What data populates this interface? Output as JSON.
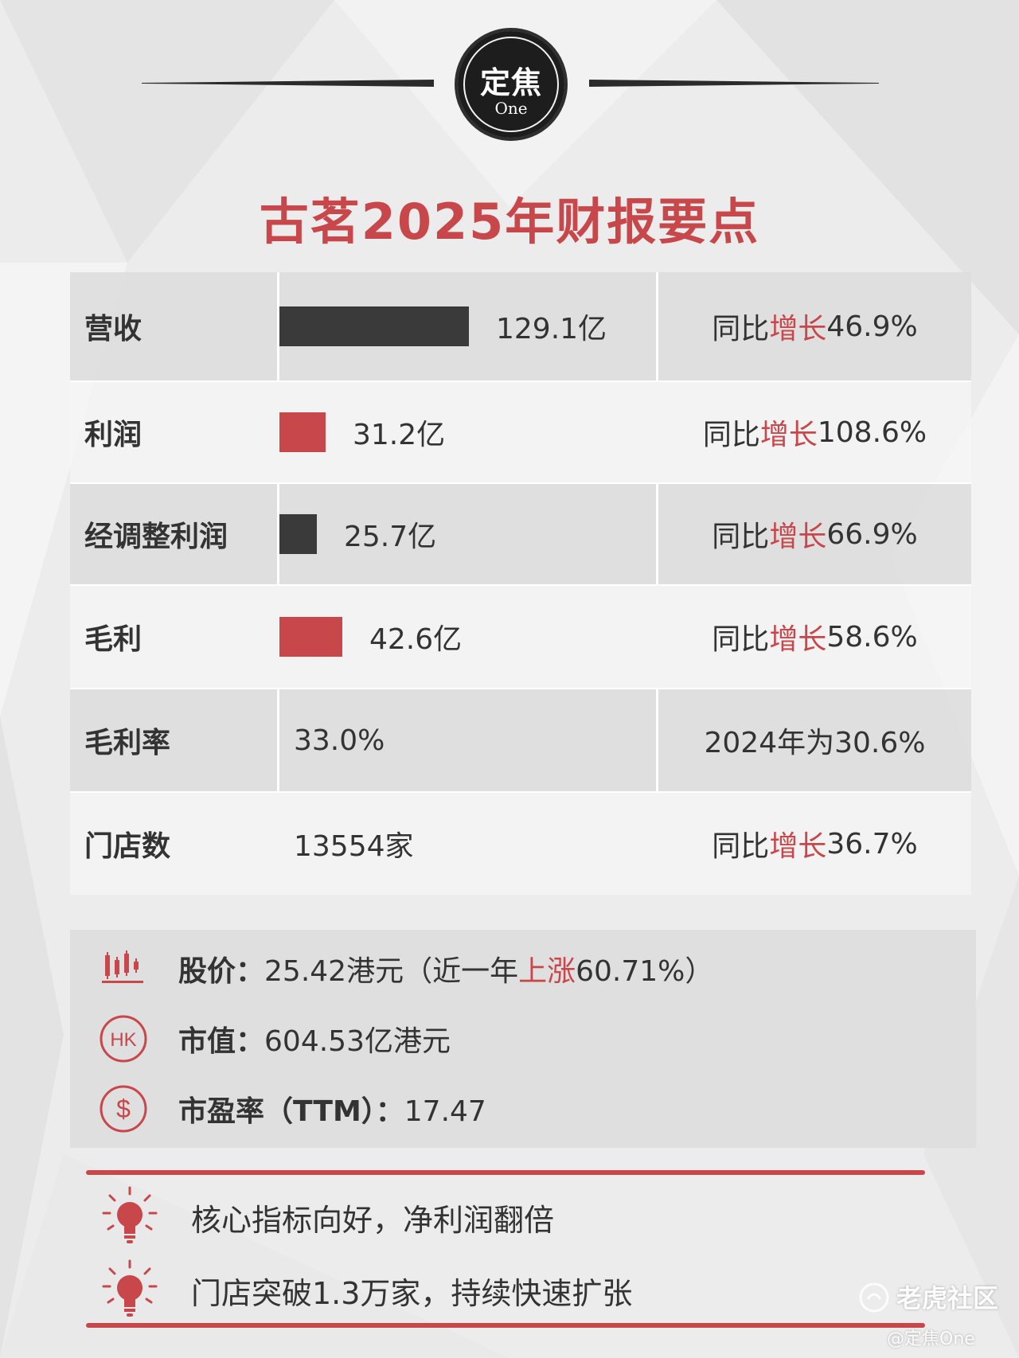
{
  "header": {
    "logo_cn": "定焦",
    "logo_en": "One",
    "title": "古茗2025年财报要点"
  },
  "table": {
    "rows": [
      {
        "label": "营收",
        "value": "129.1亿",
        "bar_color": "dark",
        "bar_value": 129.1,
        "growth_prefix": "同比",
        "growth_word": "增长",
        "growth_value": "46.9%"
      },
      {
        "label": "利润",
        "value": "31.2亿",
        "bar_color": "red",
        "bar_value": 31.2,
        "growth_prefix": "同比",
        "growth_word": "增长",
        "growth_value": "108.6%"
      },
      {
        "label": "经调整利润",
        "value": "25.7亿",
        "bar_color": "dark",
        "bar_value": 25.7,
        "growth_prefix": "同比",
        "growth_word": "增长",
        "growth_value": "66.9%"
      },
      {
        "label": "毛利",
        "value": "42.6亿",
        "bar_color": "red",
        "bar_value": 42.6,
        "growth_prefix": "同比",
        "growth_word": "增长",
        "growth_value": "58.6%"
      },
      {
        "label": "毛利率",
        "value": "33.0%",
        "note": "2024年为30.6%"
      },
      {
        "label": "门店数",
        "value": "13554家",
        "growth_prefix": "同比",
        "growth_word": "增长",
        "growth_value": "36.7%"
      }
    ]
  },
  "market": {
    "price_label": "股价：",
    "price_value": "25.42港元（近一年",
    "price_change_word": "上涨",
    "price_change_value": "60.71%）",
    "cap_label": "市值：",
    "cap_value": "604.53亿港元",
    "pe_label": "市盈率（TTM）：",
    "pe_value": "17.47",
    "hk_icon_text": "HK",
    "dollar_icon_text": "$"
  },
  "highlights": [
    "核心指标向好，净利润翻倍",
    "门店突破1.3万家，持续快速扩张"
  ],
  "watermark": {
    "brand": "老虎社区",
    "handle": "@定焦One"
  },
  "colors": {
    "accent_red": "#c8474a",
    "dark": "#3a3a3a",
    "background": "#ececec"
  }
}
